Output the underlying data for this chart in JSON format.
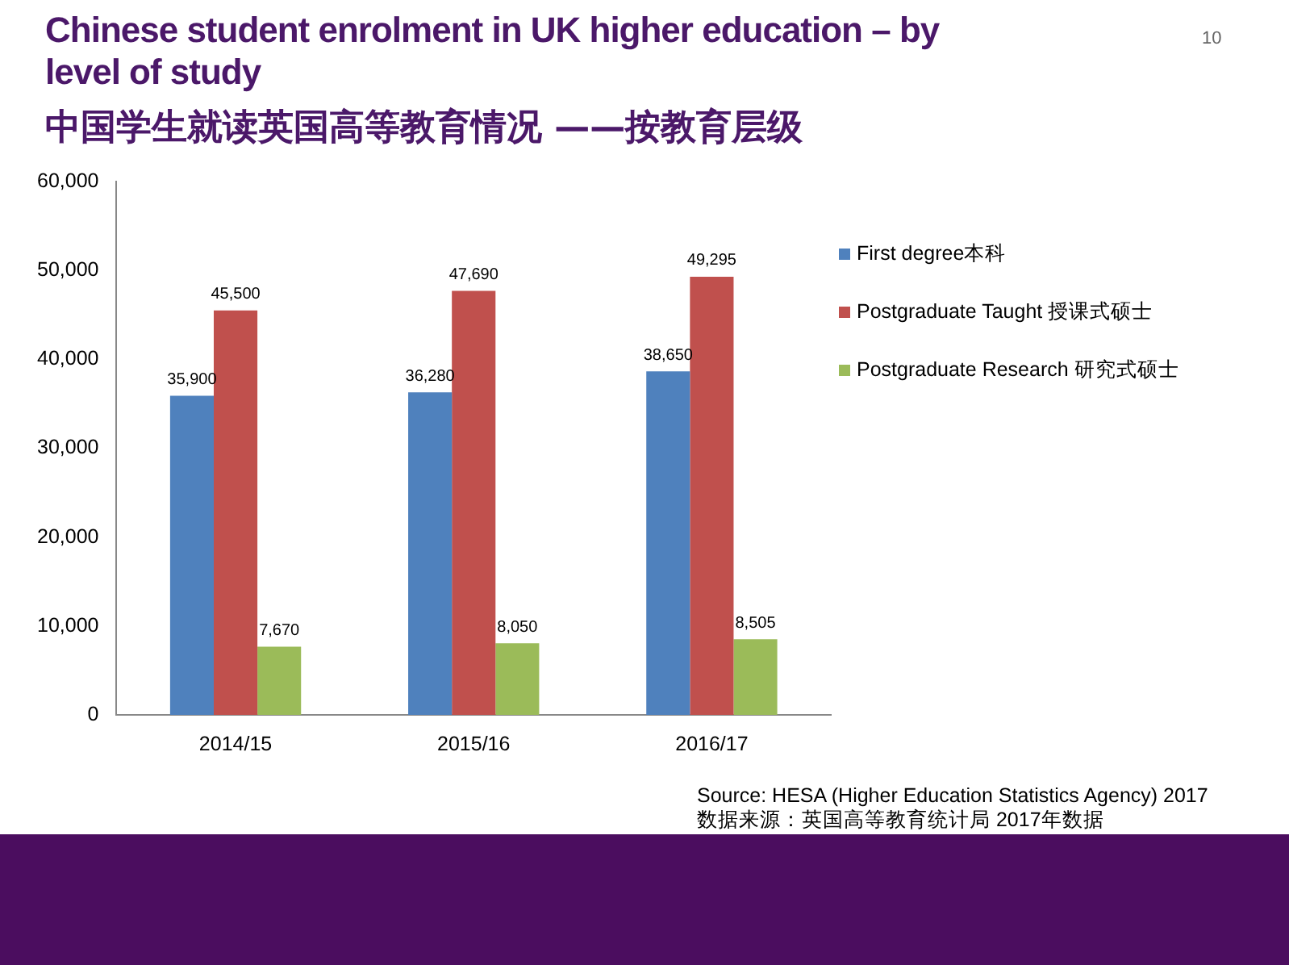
{
  "chart_data": {
    "type": "bar",
    "title": "Chinese student enrolment in UK higher education – by level of study",
    "subtitle": "中国学生就读英国高等教育情况 ——按教育层级",
    "categories": [
      "2014/15",
      "2015/16",
      "2016/17"
    ],
    "series": [
      {
        "name": "First degree本科",
        "color": "#4f81bd",
        "values": [
          35900,
          36280,
          38650
        ],
        "value_labels": [
          "35,900",
          "36,280",
          "38,650"
        ]
      },
      {
        "name": "Postgraduate Taught 授课式硕士",
        "color": "#c0504d",
        "values": [
          45500,
          47690,
          49295
        ],
        "value_labels": [
          "45,500",
          "47,690",
          "49,295"
        ]
      },
      {
        "name": "Postgraduate Research 研究式硕士",
        "color": "#9bbb59",
        "values": [
          7670,
          8050,
          8505
        ],
        "value_labels": [
          "7,670",
          "8,050",
          "8,505"
        ]
      }
    ],
    "ylim": [
      0,
      60000
    ],
    "yticks": [
      {
        "value": 0,
        "label": "0"
      },
      {
        "value": 10000,
        "label": "10,000"
      },
      {
        "value": 20000,
        "label": "20,000"
      },
      {
        "value": 30000,
        "label": "30,000"
      },
      {
        "value": 40000,
        "label": "40,000"
      },
      {
        "value": 50000,
        "label": "50,000"
      },
      {
        "value": 60000,
        "label": "60,000"
      }
    ],
    "legend": "right",
    "annotations": [
      "10",
      "Source: HESA (Higher Education Statistics Agency) 2017",
      "数据来源：英国高等教育统计局 2017年数据"
    ]
  }
}
